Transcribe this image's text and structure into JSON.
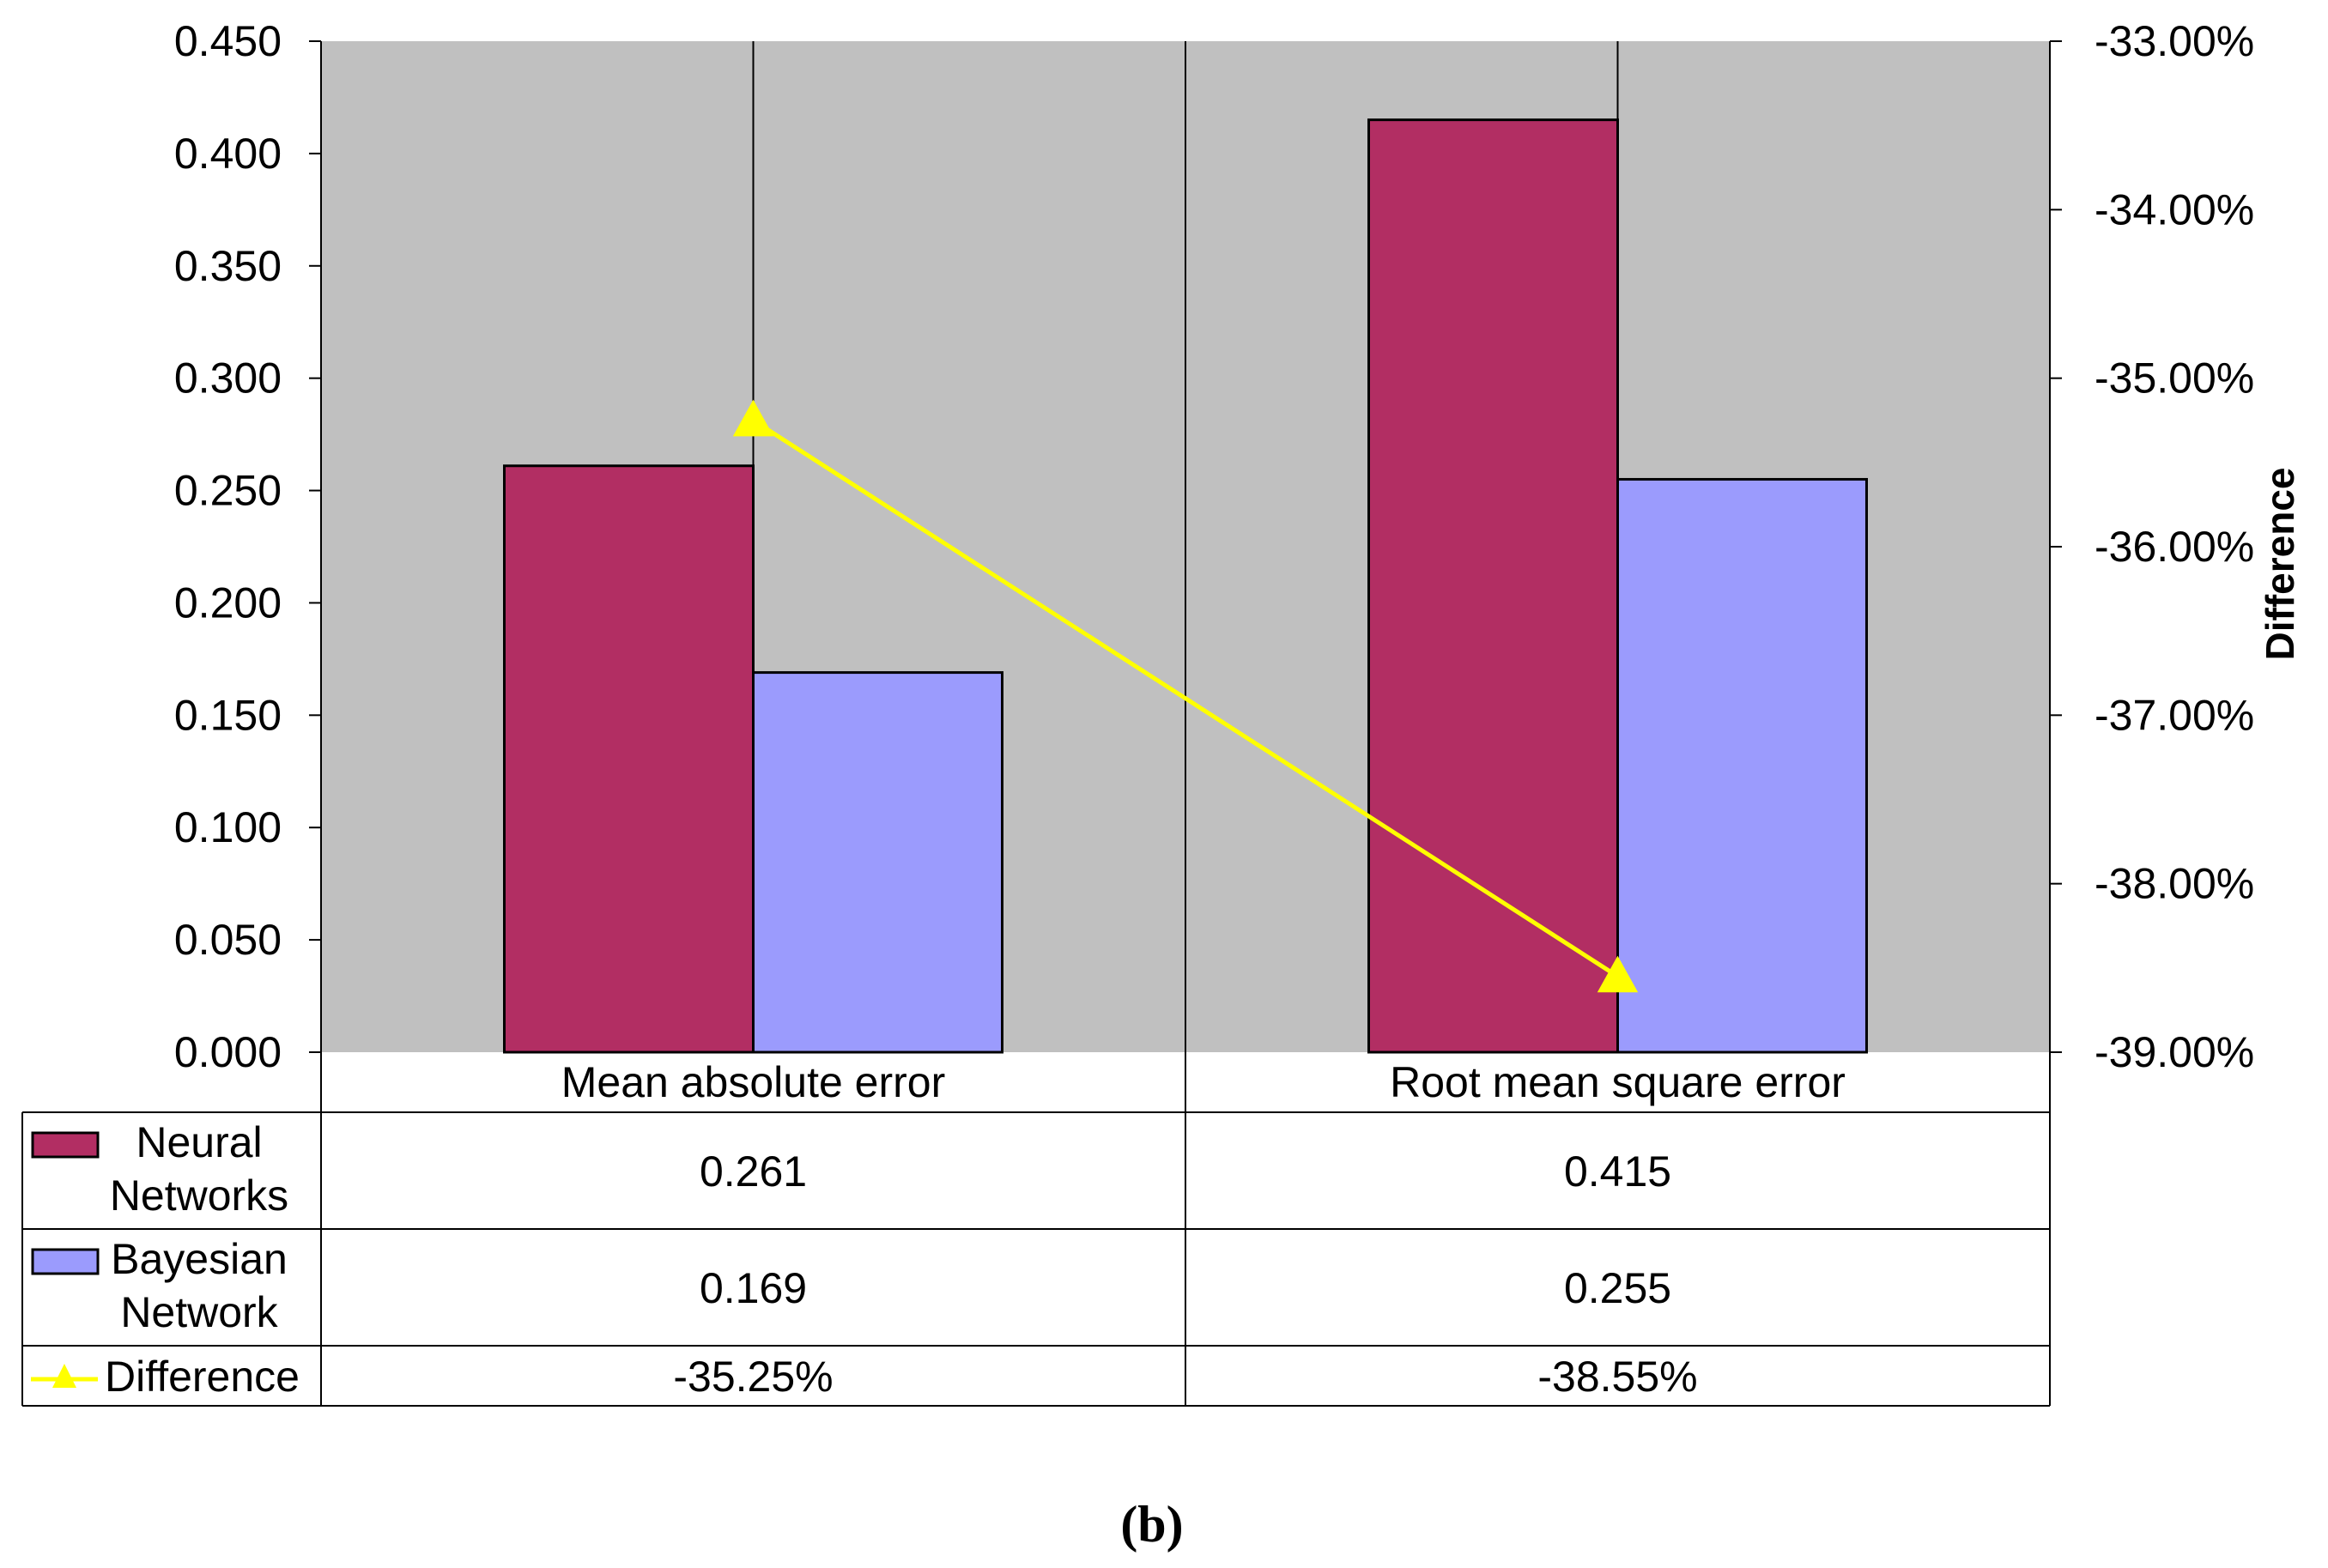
{
  "chart_data": {
    "type": "bar",
    "categories": [
      "Mean absolute error",
      "Root mean square error"
    ],
    "series": [
      {
        "name": "Neural Networks",
        "values": [
          0.261,
          0.415
        ],
        "color": "#B22E63",
        "labels": [
          "0.261",
          "0.415"
        ]
      },
      {
        "name": "Bayesian Network",
        "values": [
          0.169,
          0.255
        ],
        "color": "#9B9BFD",
        "labels": [
          "0.169",
          "0.255"
        ]
      }
    ],
    "line_series": {
      "name": "Difference",
      "axis": "secondary",
      "values": [
        -35.25,
        -38.55
      ],
      "labels": [
        "-35.25%",
        "-38.55%"
      ],
      "color": "#FFFF00",
      "marker": "triangle"
    },
    "legend_rows": [
      {
        "lines": [
          "Neural",
          "Networks"
        ]
      },
      {
        "lines": [
          "Bayesian",
          "Network"
        ]
      },
      {
        "lines": [
          "Difference"
        ]
      }
    ],
    "ylim": [
      0,
      0.45
    ],
    "yticks": [
      "0.000",
      "0.050",
      "0.100",
      "0.150",
      "0.200",
      "0.250",
      "0.300",
      "0.350",
      "0.400",
      "0.450"
    ],
    "y2lim": [
      -39,
      -33
    ],
    "y2ticks": [
      "-39.00%",
      "-38.00%",
      "-37.00%",
      "-36.00%",
      "-35.00%",
      "-34.00%",
      "-33.00%"
    ],
    "y2label": "Difference",
    "plot_background": "#C0C0C0",
    "data_table": true,
    "caption": "(b)"
  }
}
